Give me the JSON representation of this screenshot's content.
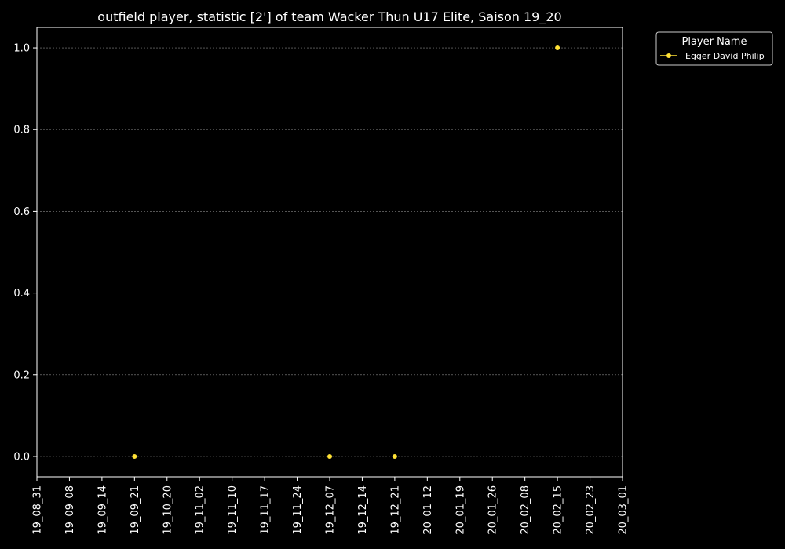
{
  "chart_data": {
    "type": "scatter",
    "title": "outfield player, statistic [2'] of team Wacker Thun U17 Elite, Saison 19_20",
    "xlabel": "",
    "ylabel": "",
    "x_ticks": [
      "19_08_31",
      "19_09_08",
      "19_09_14",
      "19_09_21",
      "19_10_20",
      "19_11_02",
      "19_11_10",
      "19_11_17",
      "19_11_24",
      "19_12_07",
      "19_12_14",
      "19_12_21",
      "20_01_12",
      "20_01_19",
      "20_01_26",
      "20_02_08",
      "20_02_15",
      "20_02_23",
      "20_03_01"
    ],
    "y_ticks": [
      "0.0",
      "0.2",
      "0.4",
      "0.6",
      "0.8",
      "1.0"
    ],
    "ylim": [
      -0.05,
      1.05
    ],
    "grid": "y",
    "legend": {
      "title": "Player Name",
      "placement": "outside-top-right"
    },
    "series": [
      {
        "name": "Egger David Philip",
        "color": "#ffe135",
        "points": [
          {
            "x": "19_09_21",
            "y": 0
          },
          {
            "x": "19_12_07",
            "y": 0
          },
          {
            "x": "19_12_21",
            "y": 0
          },
          {
            "x": "20_02_15",
            "y": 1
          }
        ]
      }
    ]
  }
}
